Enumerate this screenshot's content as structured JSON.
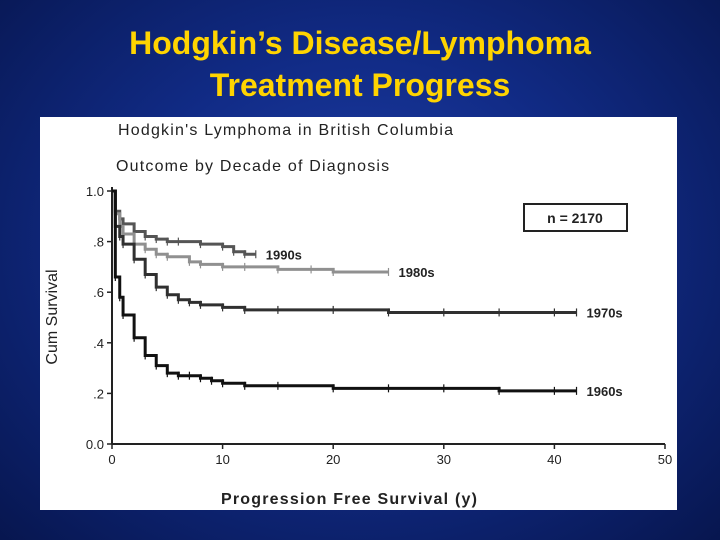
{
  "slide": {
    "title_line1": "Hodgkin’s Disease/Lymphoma",
    "title_line2": "Treatment Progress"
  },
  "chart_data": {
    "type": "line",
    "title": "Hodgkin's Lymphoma in British Columbia",
    "subtitle": "Outcome by Decade of Diagnosis",
    "xlabel": "Progression Free Survival (y)",
    "ylabel": "Cum Survival",
    "xlim": [
      0,
      50
    ],
    "ylim": [
      0,
      1
    ],
    "x_ticks": [
      "0",
      "10",
      "20",
      "30",
      "40",
      "50"
    ],
    "y_ticks": [
      "0.0",
      ".2",
      ".4",
      ".6",
      ".8",
      "1.0"
    ],
    "annotation": "n = 2170",
    "grid": false,
    "legend": "labels at line ends",
    "series": [
      {
        "name": "1990s",
        "color": "#555555",
        "x": [
          0,
          0.3,
          0.7,
          1,
          2,
          3,
          4,
          5,
          6,
          8,
          10,
          11,
          12,
          13
        ],
        "y": [
          1.0,
          0.92,
          0.89,
          0.87,
          0.84,
          0.82,
          0.81,
          0.8,
          0.8,
          0.79,
          0.78,
          0.76,
          0.75,
          0.75
        ]
      },
      {
        "name": "1980s",
        "color": "#909090",
        "x": [
          0,
          0.3,
          0.7,
          1,
          2,
          3,
          4,
          5,
          7,
          8,
          10,
          12,
          15,
          18,
          20,
          25
        ],
        "y": [
          1.0,
          0.91,
          0.86,
          0.83,
          0.79,
          0.77,
          0.75,
          0.74,
          0.72,
          0.71,
          0.7,
          0.7,
          0.69,
          0.69,
          0.68,
          0.68
        ]
      },
      {
        "name": "1970s",
        "color": "#303030",
        "x": [
          0,
          0.3,
          0.7,
          1,
          2,
          3,
          4,
          5,
          6,
          7,
          8,
          10,
          12,
          15,
          20,
          25,
          30,
          35,
          40,
          42
        ],
        "y": [
          1.0,
          0.86,
          0.82,
          0.79,
          0.73,
          0.67,
          0.62,
          0.59,
          0.57,
          0.56,
          0.55,
          0.54,
          0.53,
          0.53,
          0.53,
          0.52,
          0.52,
          0.52,
          0.52,
          0.52
        ]
      },
      {
        "name": "1960s",
        "color": "#111111",
        "x": [
          0,
          0.3,
          0.7,
          1,
          2,
          3,
          4,
          5,
          6,
          7,
          8,
          9,
          10,
          12,
          15,
          20,
          25,
          30,
          35,
          40,
          42
        ],
        "y": [
          1.0,
          0.66,
          0.58,
          0.51,
          0.42,
          0.35,
          0.31,
          0.28,
          0.27,
          0.27,
          0.26,
          0.25,
          0.24,
          0.23,
          0.23,
          0.22,
          0.22,
          0.22,
          0.21,
          0.21,
          0.21
        ]
      }
    ]
  }
}
